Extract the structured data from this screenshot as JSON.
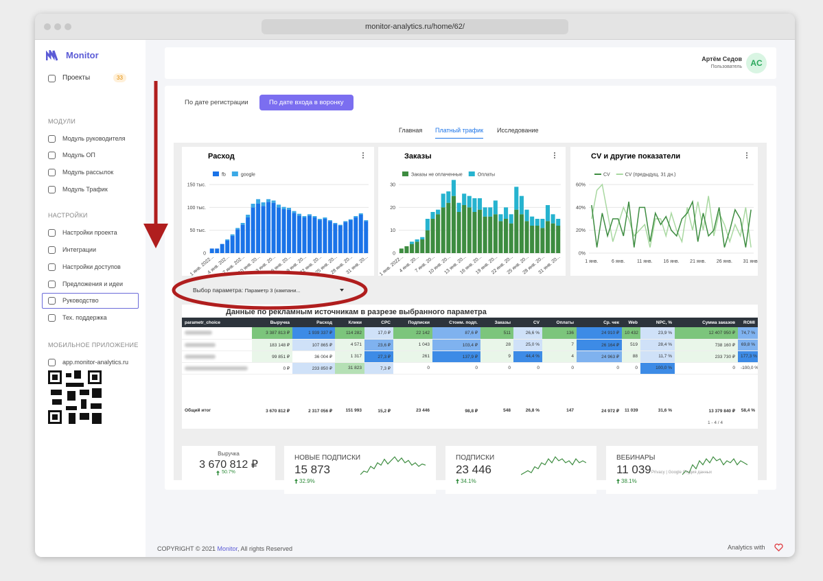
{
  "browser": {
    "url": "monitor-analytics.ru/home/62/"
  },
  "sidebar": {
    "brand": "Monitor",
    "projects": {
      "label": "Проекты",
      "count": "33"
    },
    "sections": [
      {
        "title": "МОДУЛИ",
        "items": [
          "Модуль руководителя",
          "Модуль ОП",
          "Модуль рассылок",
          "Модуль Трафик"
        ]
      },
      {
        "title": "НАСТРОЙКИ",
        "items": [
          "Настройки проекта",
          "Интеграции",
          "Настройки доступов",
          "Предложения и идеи",
          "Руководство",
          "Тех. поддержка"
        ]
      },
      {
        "title": "МОБИЛЬНОЕ ПРИЛОЖЕНИЕ",
        "items": [
          "app.monitor-analytics.ru"
        ]
      }
    ]
  },
  "header": {
    "user": "Артём Седов",
    "role": "Пользователь",
    "initials": "AC"
  },
  "buttons": [
    "По дате регистрации",
    "По дате входа в воронку"
  ],
  "tabs": [
    "Главная",
    "Платный трафик",
    "Исследование"
  ],
  "chart_data": [
    {
      "type": "bar",
      "title": "Расход",
      "stacked": true,
      "categories": [
        "1 янв. 2022...",
        null,
        null,
        "4 янв. 202...",
        null,
        null,
        "7 янв. 202...",
        null,
        null,
        "10 янв. 20...",
        null,
        null,
        "13 янв. 20...",
        null,
        null,
        "16 янв. 20...",
        null,
        null,
        "19 янв. 20...",
        null,
        null,
        "22 янв. 20...",
        null,
        null,
        "25 янв. 20...",
        null,
        null,
        "28 янв. 20...",
        null,
        null,
        "31 янв. 20..."
      ],
      "series": [
        {
          "name": "fb",
          "color": "#1a73e8",
          "values": [
            10000,
            10000,
            20000,
            28000,
            38000,
            52000,
            62000,
            78000,
            100000,
            108000,
            103000,
            112000,
            110000,
            100000,
            96000,
            95000,
            88000,
            82000,
            78000,
            82000,
            78000,
            72000,
            75000,
            70000,
            64000,
            60000,
            68000,
            72000,
            78000,
            84000,
            70000
          ]
        },
        {
          "name": "google",
          "color": "#3ba9e6",
          "values": [
            0,
            0,
            0,
            2000,
            3000,
            3000,
            4000,
            6000,
            8000,
            10000,
            8000,
            6000,
            5000,
            6000,
            5000,
            4000,
            4000,
            4000,
            3000,
            3000,
            3000,
            3000,
            3000,
            2000,
            2000,
            2000,
            2000,
            2000,
            3000,
            3000,
            2000
          ]
        }
      ],
      "ylim": [
        0,
        150000
      ],
      "yticks": [
        0,
        {
          "value": 50000,
          "label": "50 тыс."
        },
        {
          "value": 100000,
          "label": "100 тыс."
        },
        {
          "value": 150000,
          "label": "150 тыс."
        }
      ]
    },
    {
      "type": "bar",
      "title": "Заказы",
      "stacked": true,
      "categories": [
        "1 янв. 2022...",
        null,
        null,
        "4 янв. 20...",
        null,
        null,
        "7 янв. 20...",
        null,
        null,
        "10 янв. 20...",
        null,
        null,
        "13 янв. 20...",
        null,
        null,
        "16 янв. 20...",
        null,
        null,
        "19 янв. 20...",
        null,
        null,
        "22 янв. 20...",
        null,
        null,
        "25 янв. 20...",
        null,
        null,
        "28 янв. 20...",
        null,
        null,
        "31 янв. 20..."
      ],
      "series": [
        {
          "name": "Заказы не оплаченные",
          "color": "#3d8c40",
          "values": [
            2,
            3,
            4,
            5,
            6,
            10,
            15,
            17,
            20,
            22,
            25,
            18,
            21,
            20,
            18,
            19,
            16,
            16,
            17,
            14,
            15,
            13,
            19,
            17,
            14,
            12,
            12,
            11,
            14,
            13,
            12
          ]
        },
        {
          "name": "Оплаты",
          "color": "#26b3cf",
          "values": [
            0,
            0,
            1,
            1,
            1,
            5,
            3,
            2,
            6,
            5,
            7,
            4,
            5,
            5,
            6,
            5,
            4,
            4,
            6,
            3,
            5,
            4,
            10,
            8,
            5,
            4,
            3,
            4,
            7,
            4,
            3
          ]
        }
      ],
      "ylim": [
        0,
        30
      ],
      "yticks": [
        0,
        10,
        20,
        30
      ]
    },
    {
      "type": "line",
      "title": "CV и другие показатели",
      "categories": [
        "1 янв.",
        null,
        null,
        null,
        null,
        "6 янв.",
        null,
        null,
        null,
        null,
        "11 янв.",
        null,
        null,
        null,
        null,
        "16 янв.",
        null,
        null,
        null,
        null,
        "21 янв.",
        null,
        null,
        null,
        null,
        "26 янв.",
        null,
        null,
        null,
        null,
        "31 янв."
      ],
      "series": [
        {
          "name": "CV",
          "color": "#3d8c40",
          "values": [
            42,
            5,
            35,
            15,
            30,
            30,
            15,
            45,
            5,
            40,
            40,
            10,
            35,
            25,
            32,
            20,
            15,
            30,
            35,
            45,
            10,
            35,
            15,
            20,
            40,
            5,
            20,
            38,
            30,
            5,
            38
          ]
        },
        {
          "name": "CV (предыдущ. 31 дн.)",
          "color": "#a8d8a0",
          "values": [
            30,
            55,
            60,
            35,
            10,
            25,
            40,
            30,
            15,
            20,
            25,
            5,
            30,
            30,
            15,
            35,
            20,
            10,
            40,
            20,
            45,
            20,
            50,
            15,
            35,
            25,
            10,
            25,
            15,
            40,
            5
          ]
        }
      ],
      "ylim": [
        0,
        60
      ],
      "yticks": [
        {
          "value": 0,
          "label": "0%"
        },
        {
          "value": 20,
          "label": "20%"
        },
        {
          "value": 40,
          "label": "40%"
        },
        {
          "value": 60,
          "label": "60%"
        }
      ]
    }
  ],
  "selector": {
    "label": "Выбор параметра:",
    "value": "Параметр 3 (кампани..."
  },
  "table": {
    "title": "Данные по рекламным источникам в разрезе выбранного параметра",
    "columns": [
      "parametr_choice",
      "Выручка",
      "Расход",
      "Клики",
      "CPC",
      "Подписки",
      "Стоим. подп.",
      "Заказы",
      "CV",
      "Оплаты",
      "Ср. чек",
      "Web",
      "NPC, %",
      "Сумма заказов",
      "ROMI"
    ],
    "rows": [
      [
        "3 387 813 ₽",
        "1 939 337 ₽",
        "114 282",
        "17,0 ₽",
        "22 142",
        "87,6 ₽",
        "511",
        "26,6 %",
        "136",
        "24 910 ₽",
        "10 432",
        "23,9 %",
        "12 407 950 ₽",
        "74,7 %"
      ],
      [
        "183 148 ₽",
        "107 865 ₽",
        "4 571",
        "23,6 ₽",
        "1 043",
        "103,4 ₽",
        "28",
        "25,0 %",
        "7",
        "26 164 ₽",
        "519",
        "28,4 %",
        "738 160 ₽",
        "69,8 %"
      ],
      [
        "99 851 ₽",
        "36 004 ₽",
        "1 317",
        "27,3 ₽",
        "261",
        "137,9 ₽",
        "9",
        "44,4 %",
        "4",
        "24 963 ₽",
        "88",
        "11,7 %",
        "233 730 ₽",
        "177,3 %"
      ],
      [
        "0 ₽",
        "233 850 ₽",
        "31 823",
        "7,3 ₽",
        "0",
        "0",
        "0",
        "0",
        "0",
        "0",
        "0",
        "100,0 %",
        "0",
        "-100,0 %"
      ]
    ],
    "total": [
      "Общий итог",
      "3 670 812 ₽",
      "2 317 056 ₽",
      "151 993",
      "15,2 ₽",
      "23 446",
      "98,8 ₽",
      "548",
      "26,8 %",
      "147",
      "24 972 ₽",
      "11 039",
      "31,6 %",
      "13 379 840 ₽",
      "58,4 %"
    ],
    "pagination": "1 - 4 / 4"
  },
  "kpis": [
    {
      "label": "Выручка",
      "value": "3 670 812 ₽",
      "change": "50.7%"
    },
    {
      "label": "НОВЫЕ ПОДПИСКИ",
      "value": "15 873",
      "change": "32.9%",
      "trend": [
        5,
        8,
        7,
        12,
        10,
        15,
        13,
        18,
        14,
        17,
        20,
        16,
        19,
        15,
        17,
        13,
        15,
        12,
        14,
        13
      ]
    },
    {
      "label": "ПОДПИСКИ",
      "value": "23 446",
      "change": "34.1%",
      "trend": [
        4,
        5,
        6,
        5,
        8,
        7,
        10,
        9,
        12,
        10,
        13,
        11,
        12,
        10,
        11,
        9,
        12,
        10,
        11,
        10
      ]
    },
    {
      "label": "ВЕБИНАРЫ",
      "value": "11 039",
      "change": "38.1%",
      "trend": [
        4,
        6,
        5,
        9,
        7,
        11,
        9,
        12,
        10,
        13,
        11,
        12,
        9,
        11,
        10,
        12,
        9,
        11,
        10,
        9
      ]
    }
  ],
  "studio_footer": "Privacy | Google Студия данных",
  "footer": {
    "copyright": "COPYRIGHT © 2021 ",
    "brand": "Monitor",
    "rights": ", All rights Reserved",
    "right": "Analytics with"
  }
}
